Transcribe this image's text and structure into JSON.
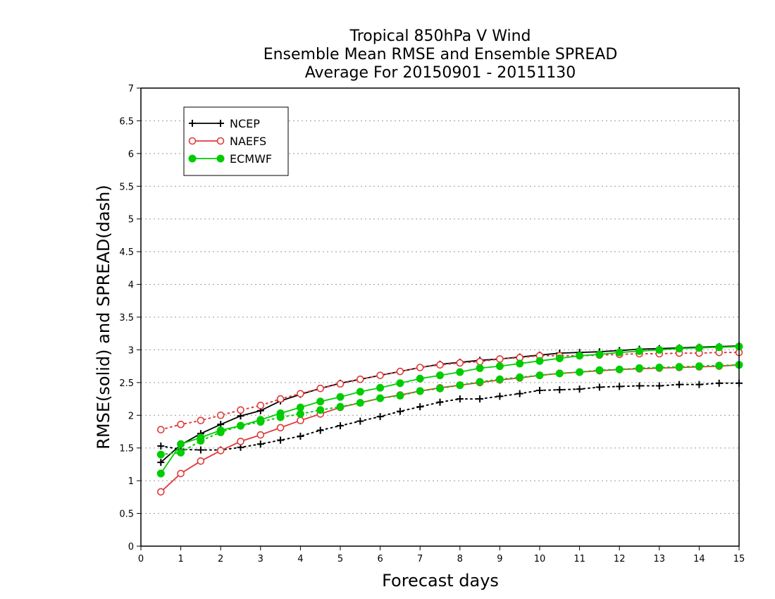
{
  "chart_data": {
    "type": "line",
    "title": [
      "Tropical 850hPa V Wind",
      "Ensemble Mean RMSE and Ensemble SPREAD",
      "Average For 20150901 - 20151130"
    ],
    "xlabel": "Forecast days",
    "ylabel": "RMSE(solid) and SPREAD(dash)",
    "xlim": [
      0,
      15
    ],
    "ylim": [
      0,
      7
    ],
    "xticks": [
      "0",
      "1",
      "2",
      "3",
      "4",
      "5",
      "6",
      "7",
      "8",
      "9",
      "10",
      "11",
      "12",
      "13",
      "14",
      "15"
    ],
    "yticks": [
      "0",
      "0.5",
      "1",
      "1.5",
      "2",
      "2.5",
      "3",
      "3.5",
      "4",
      "4.5",
      "5",
      "5.5",
      "6",
      "6.5",
      "7"
    ],
    "grid": "horizontal dotted",
    "legend_position": "top-left",
    "legend": [
      "NCEP",
      "NAEFS",
      "ECMWF"
    ],
    "colors": {
      "NCEP": "#000000",
      "NAEFS": "#e03a3a",
      "ECMWF": "#00cc00"
    },
    "x": [
      0.5,
      1,
      1.5,
      2,
      2.5,
      3,
      3.5,
      4,
      4.5,
      5,
      5.5,
      6,
      6.5,
      7,
      7.5,
      8,
      8.5,
      9,
      9.5,
      10,
      10.5,
      11,
      11.5,
      12,
      12.5,
      13,
      13.5,
      14,
      14.5,
      15
    ],
    "series": [
      {
        "name": "NCEP",
        "kind": "rmse",
        "marker": "plus",
        "values": [
          1.28,
          1.55,
          1.72,
          1.86,
          1.99,
          2.07,
          2.22,
          2.32,
          2.41,
          2.49,
          2.55,
          2.61,
          2.67,
          2.73,
          2.78,
          2.81,
          2.84,
          2.86,
          2.89,
          2.92,
          2.95,
          2.96,
          2.97,
          2.99,
          3.01,
          3.02,
          3.03,
          3.04,
          3.05,
          3.06
        ]
      },
      {
        "name": "NCEP",
        "kind": "spread",
        "marker": "plus",
        "values": [
          1.53,
          1.48,
          1.47,
          1.47,
          1.51,
          1.56,
          1.62,
          1.68,
          1.77,
          1.84,
          1.91,
          1.98,
          2.06,
          2.13,
          2.2,
          2.25,
          2.25,
          2.29,
          2.33,
          2.38,
          2.39,
          2.4,
          2.43,
          2.44,
          2.45,
          2.45,
          2.47,
          2.47,
          2.49,
          2.49
        ]
      },
      {
        "name": "NAEFS",
        "kind": "rmse",
        "marker": "open-circle",
        "values": [
          0.83,
          1.11,
          1.3,
          1.46,
          1.6,
          1.7,
          1.81,
          1.92,
          2.02,
          2.12,
          2.19,
          2.26,
          2.31,
          2.37,
          2.42,
          2.46,
          2.5,
          2.54,
          2.57,
          2.61,
          2.64,
          2.66,
          2.68,
          2.7,
          2.71,
          2.72,
          2.73,
          2.74,
          2.75,
          2.77
        ]
      },
      {
        "name": "NAEFS",
        "kind": "spread",
        "marker": "open-circle",
        "values": [
          1.78,
          1.86,
          1.92,
          2.0,
          2.08,
          2.15,
          2.25,
          2.33,
          2.41,
          2.48,
          2.55,
          2.61,
          2.67,
          2.73,
          2.77,
          2.8,
          2.82,
          2.86,
          2.88,
          2.91,
          2.91,
          2.91,
          2.92,
          2.93,
          2.94,
          2.94,
          2.95,
          2.95,
          2.96,
          2.96
        ]
      },
      {
        "name": "ECMWF",
        "kind": "rmse",
        "marker": "filled-circle",
        "values": [
          1.11,
          1.56,
          1.66,
          1.77,
          1.84,
          1.93,
          2.03,
          2.12,
          2.21,
          2.28,
          2.36,
          2.42,
          2.49,
          2.56,
          2.61,
          2.66,
          2.72,
          2.75,
          2.79,
          2.83,
          2.87,
          2.91,
          2.93,
          2.96,
          2.98,
          3.0,
          3.02,
          3.03,
          3.04,
          3.05
        ]
      },
      {
        "name": "ECMWF",
        "kind": "spread",
        "marker": "filled-circle",
        "values": [
          1.4,
          1.43,
          1.61,
          1.74,
          1.84,
          1.9,
          1.97,
          2.02,
          2.08,
          2.13,
          2.19,
          2.26,
          2.3,
          2.37,
          2.41,
          2.46,
          2.51,
          2.55,
          2.58,
          2.61,
          2.64,
          2.66,
          2.69,
          2.7,
          2.72,
          2.73,
          2.74,
          2.75,
          2.76,
          2.77
        ]
      }
    ]
  }
}
